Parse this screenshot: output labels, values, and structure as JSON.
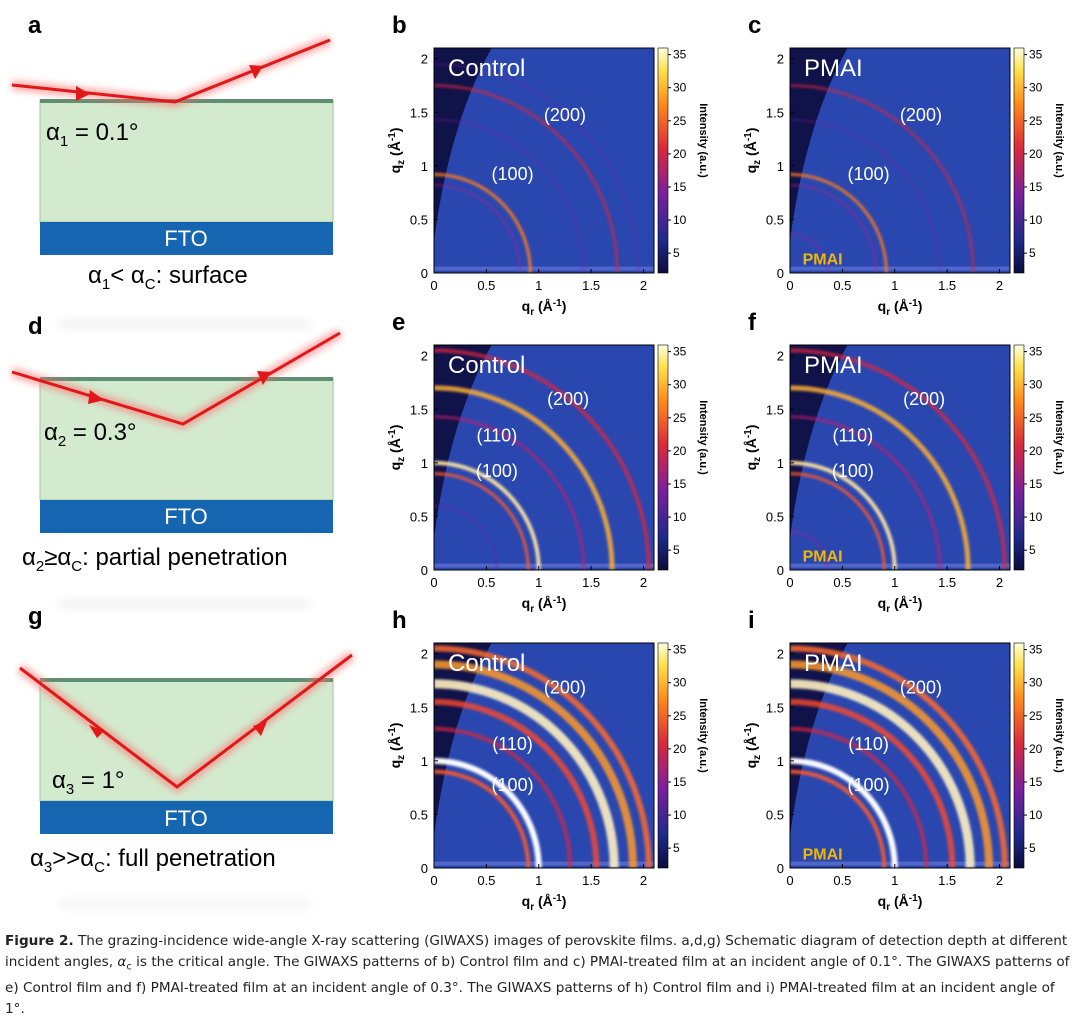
{
  "schematics": [
    {
      "panel": "a",
      "angle_letter": "α",
      "angle_sub": "1",
      "angle_value": " = 0.1°",
      "substrate": "FTO",
      "regime_pre": "α",
      "regime_sub": "1",
      "regime_mid": "< α",
      "regime_csub": "C",
      "regime_post": ": surface"
    },
    {
      "panel": "d",
      "angle_letter": "α",
      "angle_sub": "2",
      "angle_value": " = 0.3°",
      "substrate": "FTO",
      "regime_pre": "α",
      "regime_sub": "2",
      "regime_mid": "≥α",
      "regime_csub": "C",
      "regime_post": ": partial penetration"
    },
    {
      "panel": "g",
      "angle_letter": "α",
      "angle_sub": "3",
      "angle_value": " = 1°",
      "substrate": "FTO",
      "regime_pre": "α",
      "regime_sub": "3",
      "regime_mid": ">>α",
      "regime_csub": "C",
      "regime_post": ": full penetration"
    }
  ],
  "patterns": [
    {
      "panel": "b",
      "sample": "Control",
      "peaks": [
        "(200)",
        "(100)"
      ],
      "pmai_tag": ""
    },
    {
      "panel": "c",
      "sample": "PMAI",
      "peaks": [
        "(200)",
        "(100)"
      ],
      "pmai_tag": "PMAI"
    },
    {
      "panel": "e",
      "sample": "Control",
      "peaks": [
        "(200)",
        "(110)",
        "(100)"
      ],
      "pmai_tag": ""
    },
    {
      "panel": "f",
      "sample": "PMAI",
      "peaks": [
        "(200)",
        "(110)",
        "(100)"
      ],
      "pmai_tag": "PMAI"
    },
    {
      "panel": "h",
      "sample": "Control",
      "peaks": [
        "(200)",
        "(110)",
        "(100)"
      ],
      "pmai_tag": ""
    },
    {
      "panel": "i",
      "sample": "PMAI",
      "peaks": [
        "(200)",
        "(110)",
        "(100)"
      ],
      "pmai_tag": "PMAI"
    }
  ],
  "axes": {
    "x_label": "q",
    "x_sub": "r",
    "y_label": "q",
    "y_sub": "z",
    "unit": " (Å",
    "unit_exp": "-1",
    "unit_close": ")",
    "ticks": [
      "0",
      "0.5",
      "1",
      "1.5",
      "2"
    ],
    "xlim": [
      0,
      2.1
    ],
    "ylim": [
      0,
      2.1
    ]
  },
  "colorbar": {
    "label": "Intensity (a.u.)",
    "ticks": [
      "35",
      "30",
      "25",
      "20",
      "15",
      "10",
      "5"
    ],
    "range": [
      2,
      36
    ]
  },
  "caption": {
    "figure": "Figure 2.",
    "text_1": " The grazing-incidence wide-angle X-ray scattering (GIWAXS) images of perovskite films. a,d,g) Schematic diagram of detection depth at different incident angles, ",
    "alpha": "α",
    "alpha_sub": "c",
    "text_2": " is the critical angle. The GIWAXS patterns of b) Control film and c) PMAI-treated film at an incident angle of 0.1°. The GIWAXS patterns of e) Control film and f) PMAI-treated film at an incident angle of 0.3°. The GIWAXS patterns of h) Control film and i) PMAI-treated film at an incident angle of 1°."
  }
}
